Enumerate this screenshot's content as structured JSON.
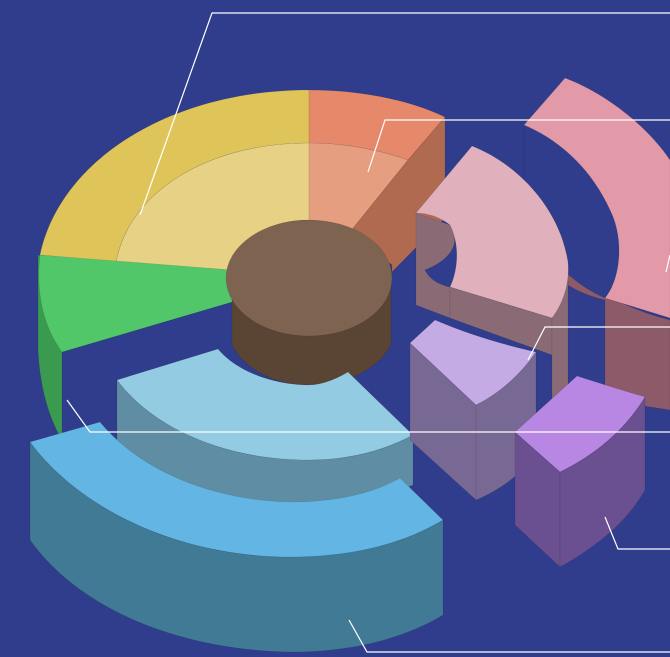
{
  "background_color": "#2f3d8c",
  "leader_line_color": "#ffffff",
  "hub_color": "#7e6450",
  "segments": [
    {
      "id": "yellow",
      "top": "#dfc45a",
      "inner_top": "#e6d184",
      "side": "#b89f3c"
    },
    {
      "id": "orange",
      "top": "#e6886a",
      "inner_top": "#e69e80",
      "side": "#b06a50"
    },
    {
      "id": "green",
      "top": "#52c76a",
      "side": "#3a9a50"
    },
    {
      "id": "light-blue",
      "top": "#93cbe3",
      "side": "#5f8ea4"
    },
    {
      "id": "blue",
      "top": "#63b5e3",
      "side": "#417a94"
    },
    {
      "id": "pink",
      "top": "#e29aa8",
      "side": "#8c5a68"
    },
    {
      "id": "mauve",
      "top": "#e0b0bd",
      "side": "#8a6a74"
    },
    {
      "id": "lavender",
      "top": "#c4abe3",
      "side": "#786894"
    },
    {
      "id": "purple",
      "top": "#b787e3",
      "side": "#6a5090"
    }
  ]
}
